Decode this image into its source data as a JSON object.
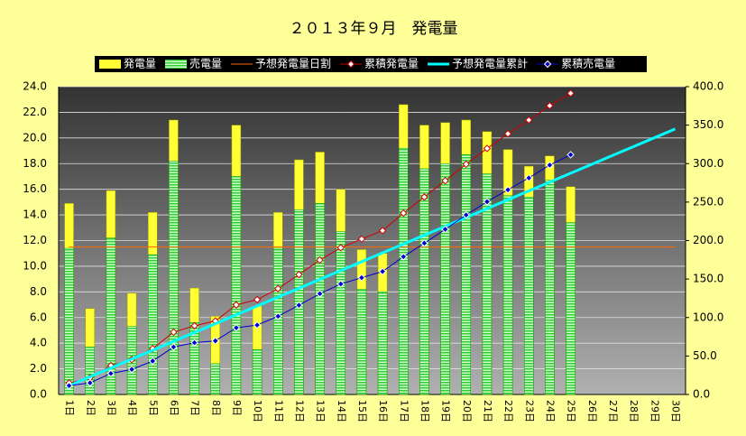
{
  "chart_data": {
    "type": "bar",
    "title": "２０１３年９月　発電量",
    "categories": [
      "1日",
      "2日",
      "3日",
      "4日",
      "5日",
      "6日",
      "7日",
      "8日",
      "9日",
      "10日",
      "11日",
      "12日",
      "13日",
      "14日",
      "15日",
      "16日",
      "17日",
      "18日",
      "19日",
      "20日",
      "21日",
      "22日",
      "23日",
      "24日",
      "25日",
      "26日",
      "27日",
      "28日",
      "29日",
      "30日"
    ],
    "series": [
      {
        "name": "発電量",
        "type": "bar",
        "color": "#ffff33",
        "values": [
          14.9,
          6.7,
          15.9,
          7.9,
          14.2,
          21.4,
          8.3,
          6.1,
          21.0,
          6.9,
          14.2,
          18.3,
          18.9,
          16.0,
          11.3,
          11.0,
          22.6,
          21.0,
          21.2,
          21.4,
          20.5,
          19.1,
          17.8,
          18.6,
          16.2,
          null,
          null,
          null,
          null,
          null
        ]
      },
      {
        "name": "売電量",
        "type": "bar",
        "color": "#66ff66",
        "values": [
          11.4,
          3.7,
          12.2,
          5.3,
          10.9,
          18.2,
          5.6,
          2.4,
          17.0,
          3.5,
          11.4,
          14.4,
          14.9,
          12.7,
          8.2,
          8.0,
          19.2,
          17.6,
          18.0,
          18.7,
          17.2,
          15.5,
          15.4,
          16.7,
          13.4,
          null,
          null,
          null,
          null,
          null
        ]
      },
      {
        "name": "予想発電量日割",
        "type": "line",
        "color": "#ff6600",
        "values": [
          11.5,
          11.5,
          11.5,
          11.5,
          11.5,
          11.5,
          11.5,
          11.5,
          11.5,
          11.5,
          11.5,
          11.5,
          11.5,
          11.5,
          11.5,
          11.5,
          11.5,
          11.5,
          11.5,
          11.5,
          11.5,
          11.5,
          11.5,
          11.5,
          11.5,
          11.5,
          11.5,
          11.5,
          11.5,
          11.5
        ]
      },
      {
        "name": "累積発電量",
        "type": "line",
        "marker": "diamond",
        "axis": "y2",
        "color": "#cc0000",
        "values": [
          14.9,
          21.6,
          37.5,
          45.4,
          59.6,
          81.0,
          89.3,
          95.4,
          116.4,
          123.3,
          137.5,
          155.8,
          174.7,
          190.7,
          202.0,
          213.0,
          235.6,
          256.6,
          277.8,
          299.2,
          319.7,
          338.8,
          356.6,
          375.2,
          391.4,
          null,
          null,
          null,
          null,
          null
        ]
      },
      {
        "name": "予想発電量累計",
        "type": "line",
        "axis": "y2",
        "color": "#00ffff",
        "values": [
          11.5,
          23,
          34.5,
          46,
          57.5,
          69,
          80.5,
          92,
          103.5,
          115,
          126.5,
          138,
          149.5,
          161,
          172.5,
          184,
          195.5,
          207,
          218.5,
          230,
          241.5,
          253,
          264.5,
          276,
          287.5,
          299,
          310.5,
          322,
          333.5,
          345
        ]
      },
      {
        "name": "累積売電量",
        "type": "line",
        "marker": "diamond",
        "axis": "y2",
        "color": "#0000cc",
        "values": [
          11.4,
          15.1,
          27.3,
          32.6,
          43.5,
          61.7,
          67.3,
          69.7,
          86.7,
          90.2,
          101.6,
          116.0,
          130.9,
          143.6,
          151.8,
          159.8,
          179.0,
          196.6,
          214.6,
          233.3,
          250.5,
          266.0,
          281.4,
          298.1,
          311.5,
          null,
          null,
          null,
          null,
          null
        ]
      }
    ],
    "ylim": [
      0,
      24
    ],
    "yticks": [
      {
        "value": 0,
        "label": "0.0"
      },
      {
        "value": 2,
        "label": "2.0"
      },
      {
        "value": 4,
        "label": "4.0"
      },
      {
        "value": 6,
        "label": "6.0"
      },
      {
        "value": 8,
        "label": "8.0"
      },
      {
        "value": 10,
        "label": "10.0"
      },
      {
        "value": 12,
        "label": "12.0"
      },
      {
        "value": 14,
        "label": "14.0"
      },
      {
        "value": 16,
        "label": "16.0"
      },
      {
        "value": 18,
        "label": "18.0"
      },
      {
        "value": 20,
        "label": "20.0"
      },
      {
        "value": 22,
        "label": "22.0"
      },
      {
        "value": 24,
        "label": "24.0"
      }
    ],
    "y2lim": [
      0,
      400
    ],
    "y2ticks": [
      {
        "value": 0,
        "label": "0.0"
      },
      {
        "value": 50,
        "label": "50.0"
      },
      {
        "value": 100,
        "label": "100.0"
      },
      {
        "value": 150,
        "label": "150.0"
      },
      {
        "value": 200,
        "label": "200.0"
      },
      {
        "value": 250,
        "label": "250.0"
      },
      {
        "value": 300,
        "label": "300.0"
      },
      {
        "value": 350,
        "label": "350.0"
      },
      {
        "value": 400,
        "label": "400.0"
      }
    ],
    "grid": true,
    "legend": "top"
  }
}
